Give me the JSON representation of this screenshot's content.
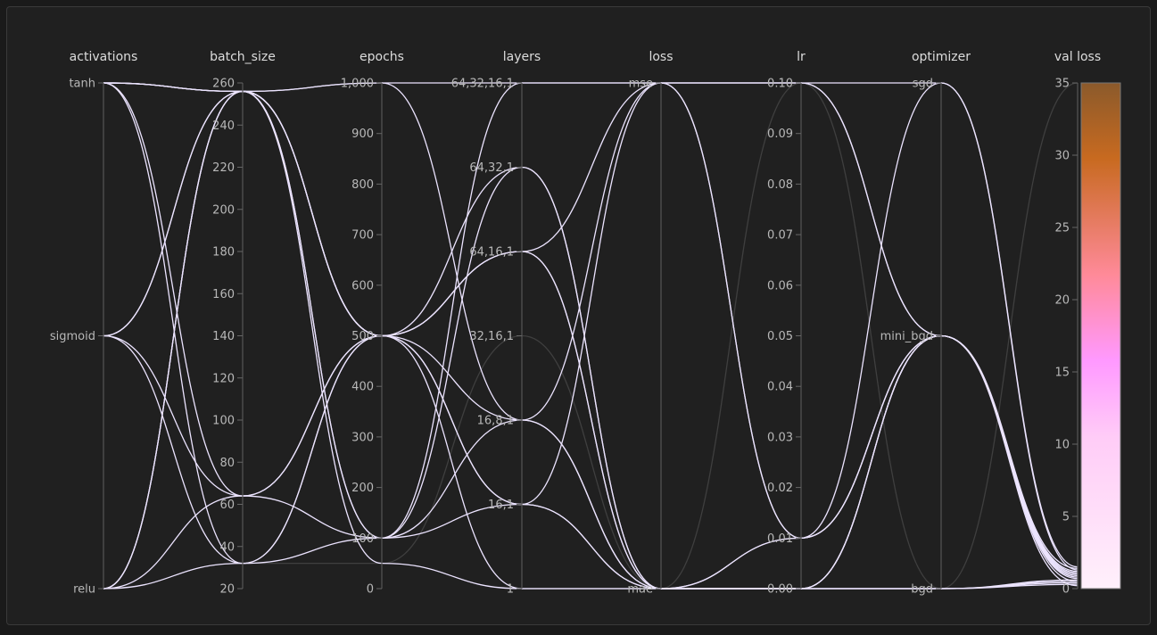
{
  "chart_data": {
    "type": "parallel-coordinates",
    "axes": [
      {
        "name": "activations",
        "kind": "categorical",
        "categories": [
          "relu",
          "sigmoid",
          "tanh"
        ]
      },
      {
        "name": "batch_size",
        "kind": "numeric",
        "range": [
          20,
          260
        ],
        "ticks": [
          20,
          40,
          60,
          80,
          100,
          120,
          140,
          160,
          180,
          200,
          220,
          240,
          260
        ]
      },
      {
        "name": "epochs",
        "kind": "numeric",
        "range": [
          0,
          1000
        ],
        "ticks": [
          0,
          100,
          200,
          300,
          400,
          500,
          600,
          700,
          800,
          900,
          1000
        ],
        "tick_labels": [
          "0",
          "100",
          "200",
          "300",
          "400",
          "500",
          "600",
          "700",
          "800",
          "900",
          "1,000"
        ]
      },
      {
        "name": "layers",
        "kind": "categorical",
        "categories": [
          "1",
          "16,1",
          "16,8,1",
          "32,16,1",
          "64,16,1",
          "64,32,1",
          "64,32,16,1"
        ]
      },
      {
        "name": "loss",
        "kind": "categorical",
        "categories": [
          "mae",
          "mse"
        ]
      },
      {
        "name": "lr",
        "kind": "numeric",
        "range": [
          0,
          0.1
        ],
        "ticks": [
          0,
          0.01,
          0.02,
          0.03,
          0.04,
          0.05,
          0.06,
          0.07,
          0.08,
          0.09,
          0.1
        ],
        "tick_labels": [
          "0.00",
          "0.01",
          "0.02",
          "0.03",
          "0.04",
          "0.05",
          "0.06",
          "0.07",
          "0.08",
          "0.09",
          "0.10"
        ]
      },
      {
        "name": "optimizer",
        "kind": "categorical",
        "categories": [
          "bgd",
          "mini_bgd",
          "sgd"
        ]
      },
      {
        "name": "val loss",
        "kind": "numeric",
        "range": [
          0,
          35
        ],
        "ticks": [
          0,
          5,
          10,
          15,
          20,
          25,
          30,
          35
        ],
        "colorbar": true
      }
    ],
    "colorbar_colors": [
      "#ffeeff",
      "#ff99ff",
      "#ff8899",
      "#cc6622",
      "#8b5a2b"
    ],
    "runs": [
      {
        "activations": "tanh",
        "batch_size": 256,
        "epochs": 1000,
        "layers": "64,32,16,1",
        "loss": "mse",
        "lr": 0.1,
        "optimizer": "mini_bgd",
        "val_loss": 0.5
      },
      {
        "activations": "tanh",
        "batch_size": 256,
        "epochs": 500,
        "layers": "64,32,1",
        "loss": "mae",
        "lr": 0.0,
        "optimizer": "mini_bgd",
        "val_loss": 0.8
      },
      {
        "activations": "tanh",
        "batch_size": 256,
        "epochs": 100,
        "layers": "16,1",
        "loss": "mae",
        "lr": 0.01,
        "optimizer": "mini_bgd",
        "val_loss": 1.0
      },
      {
        "activations": "tanh",
        "batch_size": 32,
        "epochs": 500,
        "layers": "16,8,1",
        "loss": "mae",
        "lr": 0.0,
        "optimizer": "bgd",
        "val_loss": 0.4
      },
      {
        "activations": "tanh",
        "batch_size": 256,
        "epochs": 500,
        "layers": "64,16,1",
        "loss": "mse",
        "lr": 0.1,
        "optimizer": "sgd",
        "val_loss": 1.5
      },
      {
        "activations": "sigmoid",
        "batch_size": 256,
        "epochs": 100,
        "layers": "64,32,1",
        "loss": "mae",
        "lr": 0.0,
        "optimizer": "mini_bgd",
        "val_loss": 1.2
      },
      {
        "activations": "sigmoid",
        "batch_size": 64,
        "epochs": 500,
        "layers": "16,1",
        "loss": "mae",
        "lr": 0.0,
        "optimizer": "bgd",
        "val_loss": 0.6
      },
      {
        "activations": "sigmoid",
        "batch_size": 32,
        "epochs": 100,
        "layers": "16,8,1",
        "loss": "mse",
        "lr": 0.01,
        "optimizer": "mini_bgd",
        "val_loss": 0.9
      },
      {
        "activations": "sigmoid",
        "batch_size": 256,
        "epochs": 500,
        "layers": "1",
        "loss": "mae",
        "lr": 0.0,
        "optimizer": "bgd",
        "val_loss": 0.3
      },
      {
        "activations": "relu",
        "batch_size": 256,
        "epochs": 1000,
        "layers": "16,8,1",
        "loss": "mae",
        "lr": 0.0,
        "optimizer": "mini_bgd",
        "val_loss": 1.1
      },
      {
        "activations": "relu",
        "batch_size": 256,
        "epochs": 500,
        "layers": "64,16,1",
        "loss": "mae",
        "lr": 0.01,
        "optimizer": "mini_bgd",
        "val_loss": 0.7
      },
      {
        "activations": "relu",
        "batch_size": 64,
        "epochs": 100,
        "layers": "64,32,16,1",
        "loss": "mse",
        "lr": 0.1,
        "optimizer": "mini_bgd",
        "val_loss": 1.4
      },
      {
        "activations": "relu",
        "batch_size": 32,
        "epochs": 500,
        "layers": "64,16,1",
        "loss": "mae",
        "lr": 0.0,
        "optimizer": "bgd",
        "val_loss": 0.5
      },
      {
        "activations": "relu",
        "batch_size": 256,
        "epochs": 50,
        "layers": "1",
        "loss": "mae",
        "lr": 0.0,
        "optimizer": "mini_bgd",
        "val_loss": 0.2
      },
      {
        "activations": "tanh",
        "batch_size": 64,
        "epochs": 500,
        "layers": "16,1",
        "loss": "mse",
        "lr": 0.01,
        "optimizer": "sgd",
        "val_loss": 1.3
      }
    ],
    "dim_runs": [
      {
        "activations": "relu",
        "batch_size": 32,
        "epochs": 50,
        "layers": "32,16,1",
        "loss": "mae",
        "lr": 0.1,
        "optimizer": "bgd",
        "val_loss": 35
      }
    ]
  }
}
